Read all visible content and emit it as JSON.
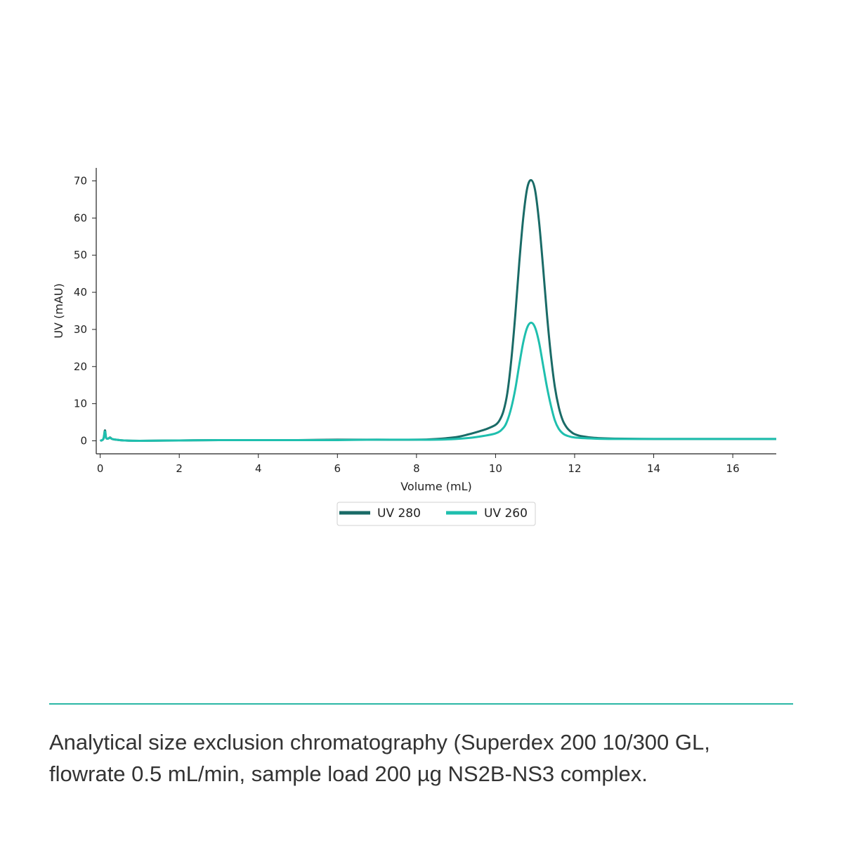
{
  "chart_data": {
    "type": "line",
    "xlabel": "Volume (mL)",
    "ylabel": "UV (mAU)",
    "xlim": [
      -0.1,
      17.1
    ],
    "ylim": [
      -3.5,
      73.5
    ],
    "xticks": [
      0,
      2,
      4,
      6,
      8,
      10,
      12,
      14,
      16
    ],
    "yticks": [
      0,
      10,
      20,
      30,
      40,
      50,
      60,
      70
    ],
    "grid": false,
    "legend": "bottom-center, below x-axis",
    "series": [
      {
        "name": "UV 280",
        "color": "#1a6b67",
        "x": [
          0,
          0.08,
          0.12,
          0.15,
          0.2,
          0.25,
          0.3,
          0.4,
          0.6,
          1,
          2,
          3,
          4,
          5,
          6,
          7,
          8,
          8.5,
          9,
          9.3,
          9.6,
          9.8,
          10,
          10.1,
          10.2,
          10.3,
          10.4,
          10.5,
          10.6,
          10.7,
          10.8,
          10.9,
          11.0,
          11.1,
          11.2,
          11.3,
          11.4,
          11.5,
          11.6,
          11.7,
          11.8,
          11.9,
          12.0,
          12.2,
          12.5,
          13,
          14,
          15,
          16,
          17.1
        ],
        "y": [
          0,
          0.5,
          2.8,
          0.8,
          0.6,
          0.9,
          0.5,
          0.3,
          0.1,
          0,
          0.1,
          0.2,
          0.2,
          0.2,
          0.3,
          0.3,
          0.3,
          0.5,
          1.0,
          1.7,
          2.6,
          3.3,
          4.3,
          5.5,
          8,
          13,
          22,
          34,
          48,
          60,
          68,
          70.2,
          67.5,
          59,
          47,
          34,
          23,
          14.5,
          9,
          5.5,
          3.6,
          2.5,
          1.8,
          1.2,
          0.8,
          0.6,
          0.5,
          0.5,
          0.5,
          0.5
        ]
      },
      {
        "name": "UV 260",
        "color": "#1fbfae",
        "x": [
          0,
          0.08,
          0.12,
          0.15,
          0.2,
          0.25,
          0.3,
          0.4,
          0.6,
          1,
          2,
          3,
          4,
          5,
          6,
          7,
          8,
          8.5,
          9,
          9.5,
          10,
          10.2,
          10.3,
          10.4,
          10.5,
          10.6,
          10.7,
          10.8,
          10.9,
          11.0,
          11.1,
          11.2,
          11.3,
          11.4,
          11.5,
          11.6,
          11.7,
          11.8,
          12.0,
          12.5,
          13,
          14,
          15,
          16,
          17.1
        ],
        "y": [
          0,
          0.5,
          2.5,
          0.8,
          0.6,
          0.8,
          0.5,
          0.3,
          0.1,
          0,
          0.1,
          0.2,
          0.2,
          0.2,
          0.2,
          0.3,
          0.3,
          0.3,
          0.5,
          1.0,
          2.0,
          3.5,
          5.5,
          9,
          14,
          20.5,
          26.5,
          30.5,
          31.8,
          30.5,
          26.5,
          20.5,
          14.5,
          9.5,
          5.5,
          3.2,
          2.0,
          1.4,
          0.9,
          0.6,
          0.5,
          0.5,
          0.5,
          0.5,
          0.5
        ]
      }
    ]
  },
  "caption": {
    "line1": "Analytical size exclusion chromatography (Superdex 200 10/300 GL,",
    "line2": "flowrate 0.5 mL/min, sample load 200 µg NS2B-NS3 complex."
  }
}
